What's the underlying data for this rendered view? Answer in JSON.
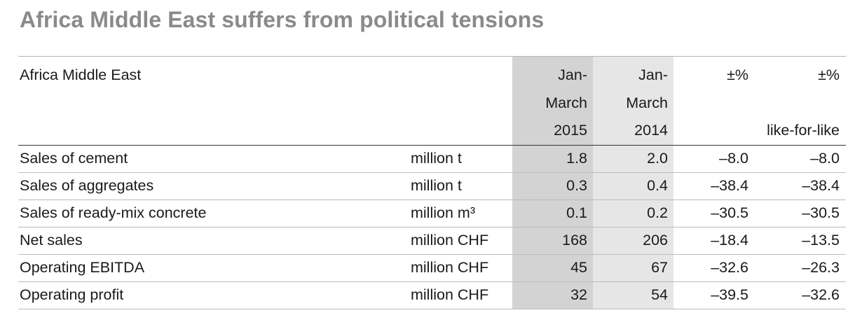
{
  "title": "Africa Middle East suffers from political tensions",
  "table": {
    "header": {
      "label": "Africa Middle East",
      "unit": "",
      "col_2015": [
        "Jan-",
        "March",
        "2015"
      ],
      "col_2014": [
        "Jan-",
        "March",
        "2014"
      ],
      "col_change": [
        "±%",
        "",
        ""
      ],
      "col_lfl": [
        "±%",
        "",
        "like-for-like"
      ]
    },
    "rows": [
      {
        "label": "Sales of cement",
        "unit": "million t",
        "v2015": "1.8",
        "v2014": "2.0",
        "change": "–8.0",
        "lfl": "–8.0"
      },
      {
        "label": "Sales of aggregates",
        "unit": "million t",
        "v2015": "0.3",
        "v2014": "0.4",
        "change": "–38.4",
        "lfl": "–38.4"
      },
      {
        "label": "Sales of ready-mix concrete",
        "unit": "million m³",
        "v2015": "0.1",
        "v2014": "0.2",
        "change": "–30.5",
        "lfl": "–30.5"
      },
      {
        "label": "Net sales",
        "unit": "million CHF",
        "v2015": "168",
        "v2014": "206",
        "change": "–18.4",
        "lfl": "–13.5"
      },
      {
        "label": "Operating EBITDA",
        "unit": "million CHF",
        "v2015": "45",
        "v2014": "67",
        "change": "–32.6",
        "lfl": "–26.3"
      },
      {
        "label": "Operating profit",
        "unit": "million CHF",
        "v2015": "32",
        "v2014": "54",
        "change": "–39.5",
        "lfl": "–32.6"
      }
    ]
  }
}
